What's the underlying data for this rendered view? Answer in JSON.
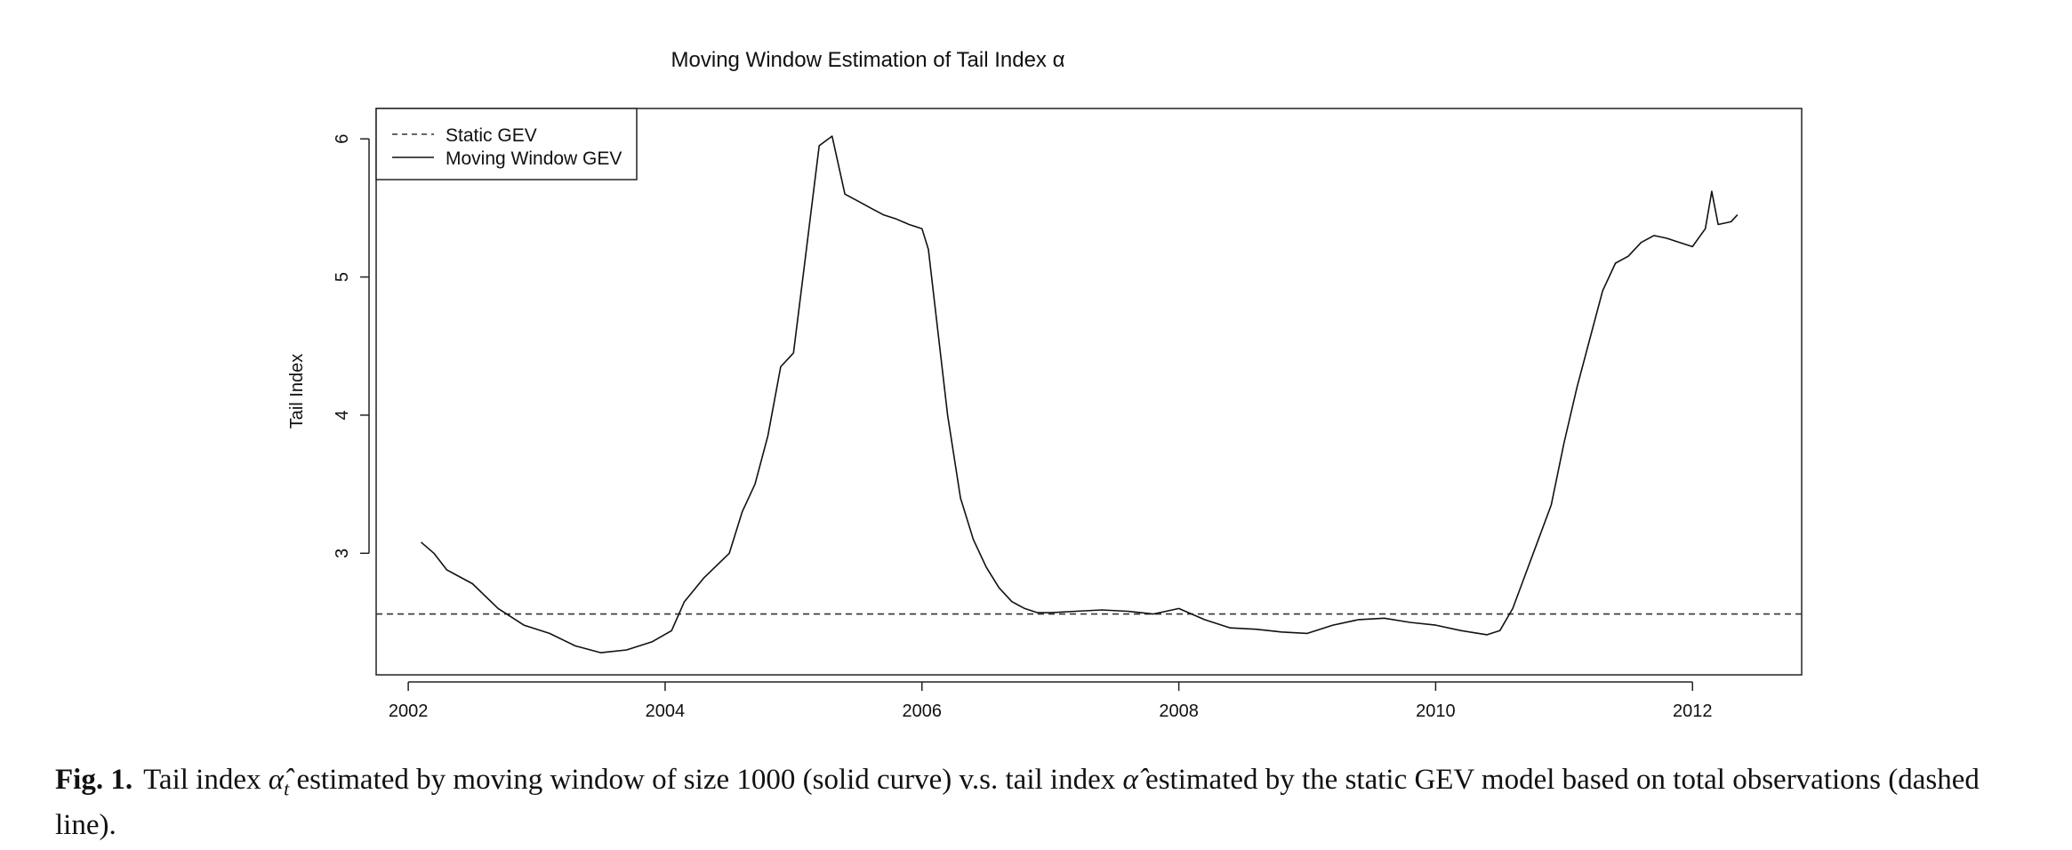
{
  "chart_data": {
    "type": "line",
    "title": "Moving Window Estimation of Tail Index α",
    "xlabel": "",
    "ylabel": "Tail Index",
    "xlim": [
      2001.75,
      2012.85
    ],
    "ylim": [
      2.12,
      6.22
    ],
    "x_ticks": [
      2002,
      2004,
      2006,
      2008,
      2010,
      2012
    ],
    "y_ticks": [
      3,
      4,
      5,
      6
    ],
    "grid": false,
    "legend_position": "top-left",
    "series": [
      {
        "name": "Static GEV",
        "style": "dashed",
        "color": "#333333",
        "x": [
          2001.75,
          2012.85
        ],
        "y": [
          2.56,
          2.56
        ]
      },
      {
        "name": "Moving Window GEV",
        "style": "solid",
        "color": "#111111",
        "x": [
          2002.1,
          2002.2,
          2002.3,
          2002.5,
          2002.7,
          2002.9,
          2003.1,
          2003.3,
          2003.5,
          2003.7,
          2003.9,
          2004.05,
          2004.15,
          2004.3,
          2004.5,
          2004.6,
          2004.7,
          2004.8,
          2004.9,
          2005.0,
          2005.1,
          2005.2,
          2005.3,
          2005.4,
          2005.5,
          2005.6,
          2005.7,
          2005.8,
          2005.9,
          2006.0,
          2006.05,
          2006.1,
          2006.2,
          2006.3,
          2006.4,
          2006.5,
          2006.6,
          2006.7,
          2006.8,
          2006.9,
          2007.0,
          2007.2,
          2007.4,
          2007.6,
          2007.8,
          2008.0,
          2008.2,
          2008.4,
          2008.6,
          2008.8,
          2009.0,
          2009.2,
          2009.4,
          2009.6,
          2009.8,
          2010.0,
          2010.2,
          2010.4,
          2010.5,
          2010.6,
          2010.7,
          2010.8,
          2010.9,
          2011.0,
          2011.1,
          2011.2,
          2011.3,
          2011.4,
          2011.5,
          2011.6,
          2011.7,
          2011.8,
          2011.9,
          2012.0,
          2012.1,
          2012.15,
          2012.2,
          2012.3,
          2012.35
        ],
        "y": [
          3.08,
          3.0,
          2.88,
          2.78,
          2.6,
          2.48,
          2.42,
          2.33,
          2.28,
          2.3,
          2.36,
          2.44,
          2.65,
          2.82,
          3.0,
          3.3,
          3.5,
          3.85,
          4.35,
          4.45,
          5.2,
          5.95,
          6.02,
          5.6,
          5.55,
          5.5,
          5.45,
          5.42,
          5.38,
          5.35,
          5.2,
          4.8,
          4.0,
          3.4,
          3.1,
          2.9,
          2.75,
          2.65,
          2.6,
          2.57,
          2.57,
          2.58,
          2.59,
          2.58,
          2.56,
          2.6,
          2.52,
          2.46,
          2.45,
          2.43,
          2.42,
          2.48,
          2.52,
          2.53,
          2.5,
          2.48,
          2.44,
          2.41,
          2.44,
          2.6,
          2.85,
          3.1,
          3.35,
          3.8,
          4.2,
          4.55,
          4.9,
          5.1,
          5.15,
          5.25,
          5.3,
          5.28,
          5.25,
          5.22,
          5.35,
          5.62,
          5.38,
          5.4,
          5.45
        ]
      }
    ]
  },
  "caption": {
    "label": "Fig. 1.",
    "text_1": "Tail index ",
    "alpha_hat": "α̂",
    "alpha_sub": "t",
    "text_2": " estimated by moving window of size 1000 (solid curve) v.s. tail index ",
    "alpha_hat_2": "α̂",
    "text_3": " estimated by the static GEV model based on total observations (dashed line)."
  }
}
